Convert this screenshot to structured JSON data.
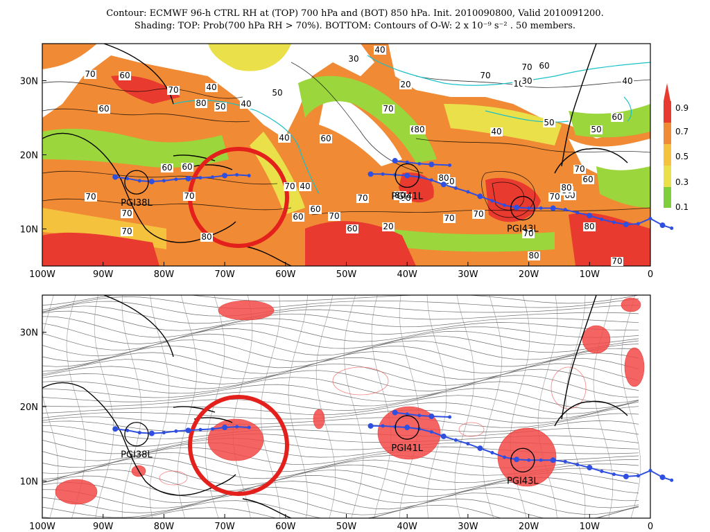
{
  "title": {
    "line1": "Contour: ECMWF 96-h CTRL RH at (TOP) 700 hPa and (BOT) 850 hPa. Init. 2010090800, Valid 2010091200.",
    "line2": "Shading: TOP: Prob(700 hPa RH > 70%).  BOTTOM: Contours of O-W: 2 x 10⁻⁹ s⁻² . 50 members."
  },
  "axes": {
    "lon_ticks": [
      "100W",
      "90W",
      "80W",
      "70W",
      "60W",
      "50W",
      "40W",
      "30W",
      "20W",
      "10W",
      "0"
    ],
    "lat_ticks": [
      "30N",
      "20N",
      "10N"
    ]
  },
  "colorbar": {
    "labels": [
      "0.9",
      "0.7",
      "0.5",
      "0.3",
      "0.1"
    ],
    "colors": [
      "#e83a2e",
      "#f08a35",
      "#f4c23c",
      "#e9e04a",
      "#7fce3c"
    ]
  },
  "storms": [
    {
      "name": "PGI38L",
      "lon": -84.5,
      "lat": 16.3
    },
    {
      "name": "PGI41L",
      "lon": -40.0,
      "lat": 17.2
    },
    {
      "name": "PGI43L",
      "lon": -21.0,
      "lat": 12.8
    }
  ],
  "contour_labels_top": [
    "70",
    "60",
    "60",
    "70",
    "40",
    "50",
    "80",
    "50",
    "40",
    "60",
    "70",
    "40",
    "60",
    "30",
    "20",
    "40",
    "60",
    "70",
    "40",
    "60",
    "80",
    "70",
    "70",
    "60",
    "20",
    "10",
    "30",
    "40",
    "50",
    "50",
    "60",
    "40",
    "70",
    "70",
    "70",
    "60",
    "70",
    "80",
    "60",
    "70",
    "70",
    "70",
    "80",
    "80",
    "70",
    "80",
    "60",
    "80",
    "70",
    "60",
    "50",
    "60",
    "70",
    "80",
    "80",
    "70",
    "60",
    "70"
  ],
  "highlight_circle": {
    "lon": -67,
    "lat": 13.5
  }
}
